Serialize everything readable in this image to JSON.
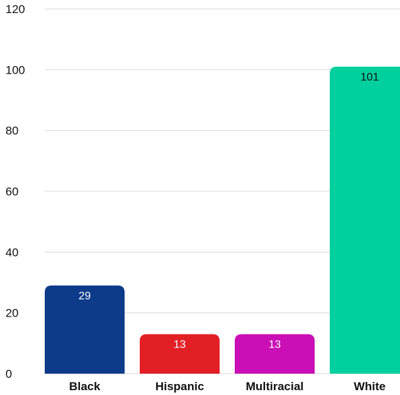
{
  "chart_data": {
    "type": "bar",
    "categories": [
      "Black",
      "Hispanic",
      "Multiracial",
      "White"
    ],
    "values": [
      29,
      13,
      13,
      101
    ],
    "data_labels": [
      "29",
      "13",
      "13",
      "101"
    ],
    "colors": [
      "#0d3b8a",
      "#e31f26",
      "#c90fb5",
      "#00cf9e"
    ],
    "y_ticks": [
      "0",
      "20",
      "40",
      "60",
      "80",
      "100",
      "120"
    ],
    "ylim": [
      0,
      120
    ],
    "grid": true,
    "legend": "none"
  }
}
